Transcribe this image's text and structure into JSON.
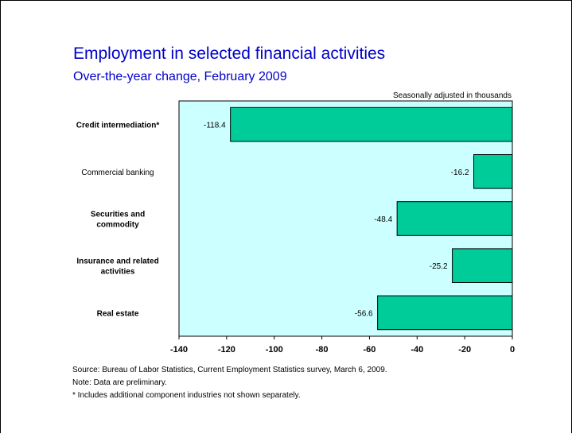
{
  "header": {
    "title": "Employment in selected financial activities",
    "subtitle": "Over-the-year change, February 2009",
    "units_note": "Seasonally adjusted in thousands"
  },
  "chart_data": {
    "type": "bar",
    "orientation": "horizontal",
    "categories": [
      {
        "label": [
          "Credit intermediation*"
        ],
        "bold": true
      },
      {
        "label": [
          "Commercial banking"
        ],
        "bold": false
      },
      {
        "label": [
          "Securities and",
          "commodity"
        ],
        "bold": true
      },
      {
        "label": [
          "Insurance and related",
          "activities"
        ],
        "bold": true
      },
      {
        "label": [
          "Real estate"
        ],
        "bold": true
      }
    ],
    "values": [
      -118.4,
      -16.2,
      -48.4,
      -25.2,
      -56.6
    ],
    "data_labels": [
      "-118.4",
      "-16.2",
      "-48.4",
      "-25.2",
      "-56.6"
    ],
    "xlim": [
      -140,
      0
    ],
    "xticks": [
      -140,
      -120,
      -100,
      -80,
      -60,
      -40,
      -20,
      0
    ],
    "grid": false,
    "colors": {
      "bar": "#00cc99",
      "plot_background": "#ccffff",
      "bar_outline": "#000000"
    }
  },
  "footer": {
    "source": "Source:  Bureau of Labor Statistics, Current Employment Statistics survey, March 6, 2009.",
    "note": "Note:  Data are preliminary.",
    "asterisk": "* Includes additional component industries not shown separately."
  }
}
